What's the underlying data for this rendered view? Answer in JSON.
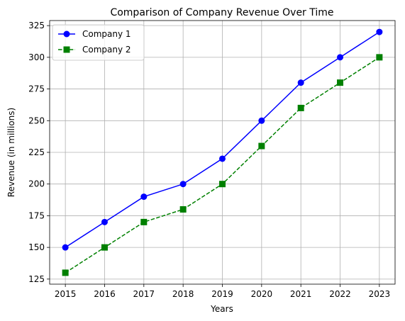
{
  "chart_data": {
    "type": "line",
    "title": "Comparison of Company Revenue Over Time",
    "xlabel": "Years",
    "ylabel": "Revenue (in millions)",
    "x": [
      2015,
      2016,
      2017,
      2018,
      2019,
      2020,
      2021,
      2022,
      2023
    ],
    "x_ticks": [
      "2015",
      "2016",
      "2017",
      "2018",
      "2019",
      "2020",
      "2021",
      "2022",
      "2023"
    ],
    "y_ticks": [
      125,
      150,
      175,
      200,
      225,
      250,
      275,
      300,
      325
    ],
    "y_tick_labels": [
      "125",
      "150",
      "175",
      "200",
      "225",
      "250",
      "275",
      "300",
      "325"
    ],
    "xlim": [
      2014.6,
      2023.4
    ],
    "ylim": [
      121,
      329
    ],
    "grid": true,
    "legend_position": "top-left",
    "series": [
      {
        "name": "Company 1",
        "values": [
          150,
          170,
          190,
          200,
          220,
          250,
          280,
          300,
          320
        ],
        "color": "#0000ff",
        "marker": "circle",
        "line_style": "solid"
      },
      {
        "name": "Company 2",
        "values": [
          130,
          150,
          170,
          180,
          200,
          230,
          260,
          280,
          300
        ],
        "color": "#008000",
        "marker": "square",
        "line_style": "dashed"
      }
    ]
  }
}
